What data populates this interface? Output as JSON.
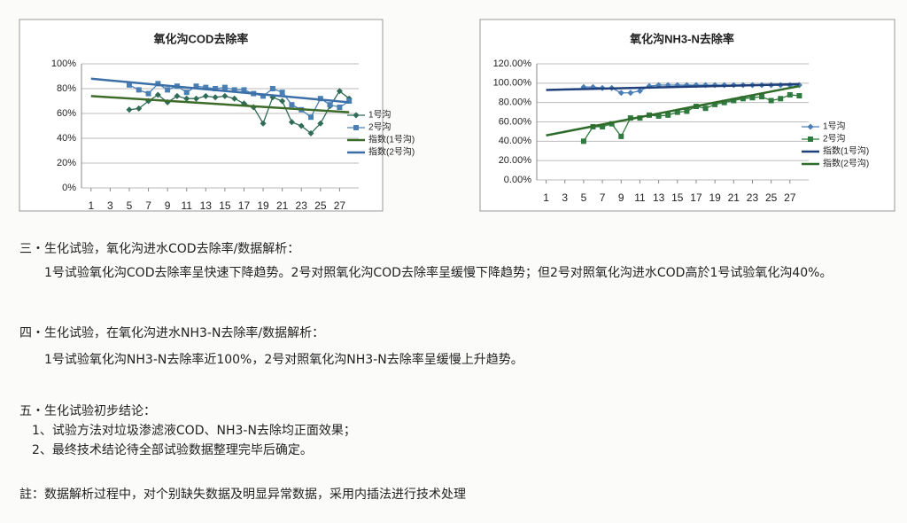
{
  "chart_data": [
    {
      "type": "line",
      "title": "氧化沟COD去除率",
      "xlim": [
        0,
        29
      ],
      "xticks": [
        1,
        3,
        5,
        7,
        9,
        11,
        13,
        15,
        17,
        19,
        21,
        23,
        25,
        27
      ],
      "ylim": [
        0,
        100
      ],
      "yticks": [
        {
          "value": 0,
          "label": "0%"
        },
        {
          "value": 20,
          "label": "20%"
        },
        {
          "value": 40,
          "label": "40%"
        },
        {
          "value": 60,
          "label": "60%"
        },
        {
          "value": 80,
          "label": "80%"
        },
        {
          "value": 100,
          "label": "100%"
        }
      ],
      "grid": true,
      "legend": "right",
      "series": [
        {
          "name": "1号沟",
          "color": "#2f6b55",
          "marker": "diamond",
          "x": [
            5,
            6,
            7,
            8,
            9,
            10,
            11,
            12,
            13,
            14,
            15,
            16,
            17,
            18,
            19,
            20,
            21,
            22,
            23,
            24,
            25,
            26,
            27,
            28
          ],
          "values": [
            63,
            64,
            70,
            75,
            69,
            74,
            72,
            72,
            74,
            73,
            74,
            72,
            68,
            65,
            52,
            73,
            70,
            53,
            50,
            44,
            52,
            66,
            78,
            72
          ]
        },
        {
          "name": "2号沟",
          "color": "#4a7fb5",
          "marker": "square",
          "x": [
            5,
            6,
            7,
            8,
            9,
            10,
            11,
            12,
            13,
            14,
            15,
            16,
            17,
            18,
            19,
            20,
            21,
            22,
            23,
            24,
            25,
            26,
            27,
            28
          ],
          "values": [
            83,
            79,
            76,
            84,
            79,
            82,
            77,
            82,
            81,
            80,
            81,
            79,
            79,
            76,
            74,
            80,
            77,
            67,
            63,
            57,
            72,
            67,
            65,
            70
          ]
        },
        {
          "name": "指数(1号沟)",
          "color": "#3d6b2a",
          "width": 2.5,
          "x": [
            1,
            28
          ],
          "values": [
            74,
            61
          ]
        },
        {
          "name": "指数(2号沟)",
          "color": "#3c6ea8",
          "width": 2.5,
          "x": [
            1,
            28
          ],
          "values": [
            88,
            69
          ]
        }
      ]
    },
    {
      "type": "line",
      "title": "氧化沟NH3-N去除率",
      "xlim": [
        0,
        29
      ],
      "xticks": [
        1,
        3,
        5,
        7,
        9,
        11,
        13,
        15,
        17,
        19,
        21,
        23,
        25,
        27
      ],
      "ylim": [
        0,
        120
      ],
      "yticks": [
        {
          "value": 0,
          "label": "0.00%"
        },
        {
          "value": 20,
          "label": "20.00%"
        },
        {
          "value": 40,
          "label": "40.00%"
        },
        {
          "value": 60,
          "label": "60.00%"
        },
        {
          "value": 80,
          "label": "80.00%"
        },
        {
          "value": 100,
          "label": "100.00%"
        },
        {
          "value": 120,
          "label": "120.00%"
        }
      ],
      "grid": true,
      "legend": "right",
      "series": [
        {
          "name": "1号沟",
          "color": "#4a7fb5",
          "marker": "diamond",
          "x": [
            5,
            6,
            7,
            8,
            9,
            10,
            11,
            12,
            13,
            14,
            15,
            16,
            17,
            18,
            19,
            20,
            21,
            22,
            23,
            24,
            25,
            26,
            27,
            28
          ],
          "values": [
            96,
            96,
            95,
            95,
            90,
            90,
            92,
            97,
            98,
            98,
            98,
            98,
            98,
            98,
            98,
            98,
            98,
            98,
            98,
            98,
            98,
            98,
            98,
            98
          ]
        },
        {
          "name": "2号沟",
          "color": "#2f7a3e",
          "marker": "square",
          "x": [
            5,
            6,
            7,
            8,
            9,
            10,
            11,
            12,
            13,
            14,
            15,
            16,
            17,
            18,
            19,
            20,
            21,
            22,
            23,
            24,
            25,
            26,
            27,
            28
          ],
          "values": [
            40,
            55,
            55,
            58,
            45,
            64,
            64,
            67,
            66,
            67,
            70,
            71,
            76,
            74,
            78,
            80,
            82,
            84,
            85,
            86,
            82,
            84,
            88,
            87
          ]
        },
        {
          "name": "指数(1号沟)",
          "color": "#1f3f7a",
          "width": 2.5,
          "x": [
            1,
            28
          ],
          "values": [
            93,
            99
          ]
        },
        {
          "name": "指数(2号沟)",
          "color": "#2f6b2a",
          "width": 2.5,
          "x": [
            1,
            28
          ],
          "values": [
            46,
            97
          ]
        }
      ]
    }
  ],
  "sections": [
    {
      "heading": "三・生化试验，氧化沟进水COD去除率/数据解析：",
      "lines": [
        "1号试验氧化沟COD去除率呈快速下降趋势。2号对照氧化沟COD去除率呈缓慢下降趋势；但2号对照氧化沟进水COD高於1号试验氧化沟40%。"
      ]
    },
    {
      "heading": "四・生化试验，在氧化沟进水NH3-N去除率/数据解析：",
      "lines": [
        "1号试验氧化沟NH3-N去除率近100%，2号对照氧化沟NH3-N去除率呈缓慢上升趋势。"
      ]
    },
    {
      "heading": "五・生化试验初步结论：",
      "lines": [
        "1、试验方法对垃圾渗滤液COD、NH3-N去除均正面效果；",
        "2、最终技术结论待全部试验数据整理完毕后确定。"
      ]
    }
  ],
  "note": "註：数据解析过程中，对个别缺失数据及明显异常数据，采用内插法进行技术处理"
}
